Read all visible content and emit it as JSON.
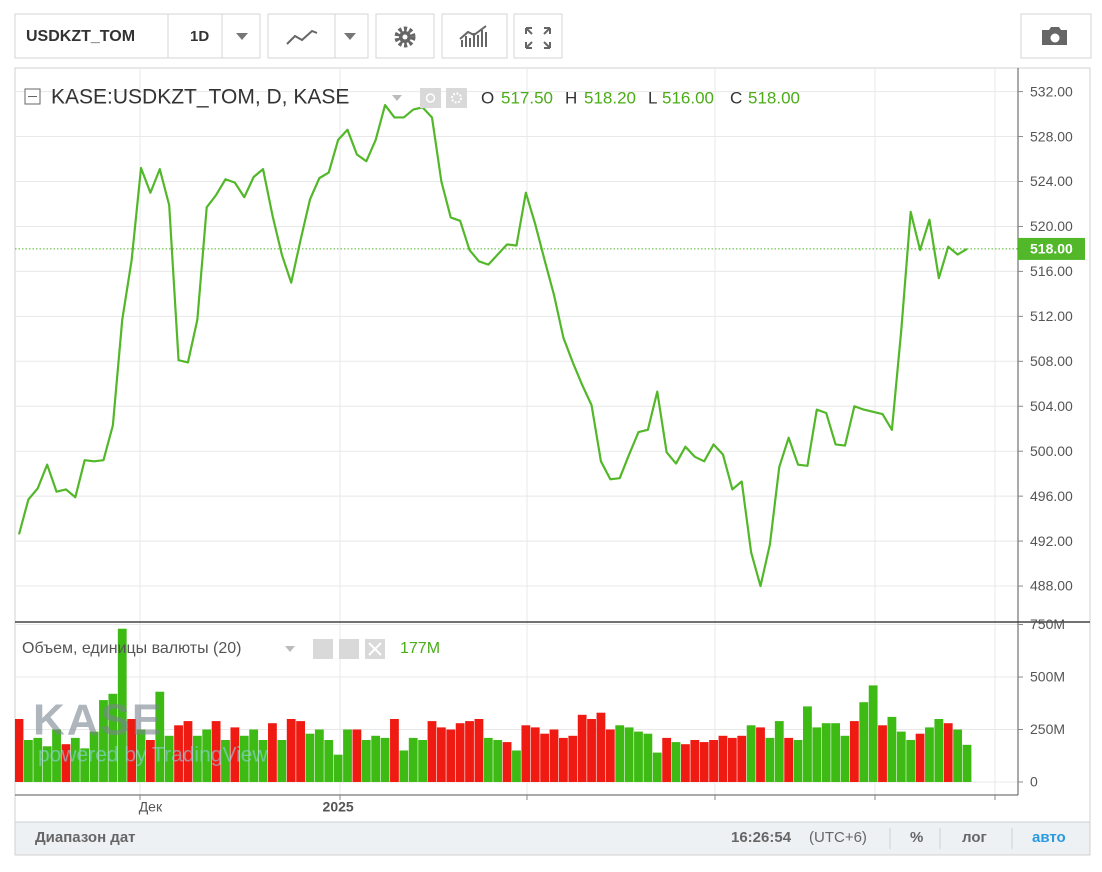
{
  "toolbar": {
    "symbol": "USDKZT_TOM",
    "interval": "1D"
  },
  "watermark": {
    "logo": "KASE",
    "powered": "powered by TradingView"
  },
  "footer": {
    "date_range": "Диапазон дат",
    "time": "16:26:54",
    "timezone": "(UTC+6)",
    "percent": "%",
    "log": "лог",
    "auto": "авто"
  },
  "chart_data": [
    {
      "type": "line",
      "title": "KASE:USDKZT_TOM, D, KASE",
      "ohlc": {
        "labels": [
          "O",
          "H",
          "L",
          "C"
        ],
        "values": [
          517.5,
          518.2,
          516,
          518
        ],
        "value_labels": [
          "517.50",
          "518.20",
          "516.00",
          "518.00"
        ]
      },
      "last_value": 518,
      "last_value_label": "518.00",
      "categories": [
        null,
        null,
        null,
        null,
        null,
        null,
        null,
        null,
        null,
        null,
        null,
        null,
        null,
        null,
        "Дек",
        null,
        null,
        null,
        null,
        null,
        null,
        null,
        null,
        null,
        null,
        null,
        null,
        null,
        null,
        null,
        null,
        null,
        null,
        null,
        "2025",
        null,
        null,
        null,
        null,
        null,
        null,
        null,
        null,
        null,
        null,
        null,
        null,
        null,
        null,
        null,
        null,
        null,
        null,
        null,
        null,
        null,
        null,
        null,
        null,
        null,
        null,
        null,
        null,
        null,
        null,
        null,
        null,
        null,
        null,
        null,
        null,
        null,
        null,
        null,
        null,
        null,
        null,
        null,
        null,
        null,
        null,
        null,
        null,
        null,
        null,
        null,
        null,
        null,
        null,
        null,
        null,
        null,
        null,
        null,
        null,
        null,
        null,
        null,
        null,
        null,
        null,
        null
      ],
      "series": [
        {
          "name": "USDKZT_TOM",
          "color": "#52b82a",
          "values": [
            492.6,
            495.7,
            496.7,
            498.8,
            496.4,
            496.6,
            495.9,
            499.2,
            499.1,
            499.2,
            502.3,
            511.7,
            517.0,
            525.2,
            523.0,
            525.1,
            521.9,
            508.1,
            507.9,
            511.7,
            521.7,
            522.8,
            524.2,
            523.9,
            522.6,
            524.4,
            525.1,
            521.0,
            517.5,
            515.0,
            518.8,
            522.4,
            524.3,
            524.8,
            527.7,
            528.6,
            526.4,
            525.8,
            527.7,
            530.8,
            529.7,
            529.7,
            530.4,
            530.6,
            529.7,
            524.0,
            520.8,
            520.5,
            517.9,
            516.9,
            516.6,
            517.5,
            518.4,
            518.3,
            523.0,
            520.2,
            517.0,
            513.9,
            510.1,
            507.9,
            505.9,
            504.1,
            499.1,
            497.5,
            497.6,
            499.7,
            501.7,
            501.9,
            505.3,
            499.9,
            498.9,
            500.4,
            499.5,
            499.1,
            500.6,
            499.7,
            496.6,
            497.3,
            491.0,
            488.0,
            491.7,
            498.6,
            501.2,
            498.8,
            498.7,
            503.7,
            503.4,
            500.6,
            500.5,
            504.0,
            503.7,
            503.5,
            503.3,
            501.9,
            510.8,
            521.3,
            517.9,
            520.6,
            515.4,
            518.2,
            517.5,
            518.0
          ]
        }
      ],
      "ylim": [
        484.8,
        534.1
      ],
      "yticks": [
        {
          "value": 488,
          "label": "488.00"
        },
        {
          "value": 492,
          "label": "492.00"
        },
        {
          "value": 496,
          "label": "496.00"
        },
        {
          "value": 500,
          "label": "500.00"
        },
        {
          "value": 504,
          "label": "504.00"
        },
        {
          "value": 508,
          "label": "508.00"
        },
        {
          "value": 512,
          "label": "512.00"
        },
        {
          "value": 516,
          "label": "516.00"
        },
        {
          "value": 520,
          "label": "520.00"
        },
        {
          "value": 524,
          "label": "524.00"
        },
        {
          "value": 528,
          "label": "528.00"
        },
        {
          "value": 532,
          "label": "532.00"
        }
      ],
      "grid": true
    },
    {
      "type": "bar",
      "title": "Объем, единицы валюты (20)",
      "last_value": 177,
      "last_value_label": "177M",
      "values": [
        300,
        200,
        210,
        170,
        250,
        180,
        210,
        160,
        240,
        390,
        420,
        730,
        300,
        250,
        200,
        430,
        220,
        270,
        290,
        220,
        250,
        290,
        200,
        260,
        220,
        250,
        200,
        280,
        200,
        300,
        290,
        230,
        250,
        200,
        130,
        250,
        250,
        200,
        220,
        210,
        300,
        150,
        210,
        200,
        290,
        260,
        250,
        280,
        290,
        300,
        210,
        200,
        190,
        150,
        270,
        260,
        230,
        250,
        210,
        220,
        320,
        300,
        330,
        250,
        270,
        260,
        240,
        230,
        140,
        210,
        190,
        180,
        200,
        190,
        200,
        220,
        210,
        220,
        270,
        260,
        210,
        290,
        210,
        200,
        360,
        260,
        280,
        280,
        220,
        290,
        380,
        460,
        270,
        310,
        240,
        200,
        230,
        260,
        300,
        280,
        250,
        177
      ],
      "colors": [
        "#ef1a12",
        "#3dba13",
        "#3dba13",
        "#3dba13",
        "#3dba13",
        "#ef1a12",
        "#3dba13",
        "#3dba13",
        "#3dba13",
        "#3dba13",
        "#3dba13",
        "#3dba13",
        "#ef1a12",
        "#3dba13",
        "#ef1a12",
        "#3dba13",
        "#3dba13",
        "#ef1a12",
        "#ef1a12",
        "#3dba13",
        "#3dba13",
        "#ef1a12",
        "#3dba13",
        "#ef1a12",
        "#3dba13",
        "#3dba13",
        "#3dba13",
        "#ef1a12",
        "#3dba13",
        "#ef1a12",
        "#ef1a12",
        "#3dba13",
        "#3dba13",
        "#3dba13",
        "#3dba13",
        "#3dba13",
        "#ef1a12",
        "#3dba13",
        "#3dba13",
        "#3dba13",
        "#ef1a12",
        "#3dba13",
        "#3dba13",
        "#3dba13",
        "#ef1a12",
        "#ef1a12",
        "#ef1a12",
        "#ef1a12",
        "#ef1a12",
        "#ef1a12",
        "#3dba13",
        "#3dba13",
        "#ef1a12",
        "#3dba13",
        "#ef1a12",
        "#ef1a12",
        "#ef1a12",
        "#ef1a12",
        "#ef1a12",
        "#ef1a12",
        "#ef1a12",
        "#ef1a12",
        "#ef1a12",
        "#ef1a12",
        "#3dba13",
        "#3dba13",
        "#3dba13",
        "#3dba13",
        "#3dba13",
        "#ef1a12",
        "#3dba13",
        "#ef1a12",
        "#ef1a12",
        "#ef1a12",
        "#ef1a12",
        "#ef1a12",
        "#ef1a12",
        "#ef1a12",
        "#3dba13",
        "#ef1a12",
        "#3dba13",
        "#3dba13",
        "#ef1a12",
        "#3dba13",
        "#3dba13",
        "#3dba13",
        "#3dba13",
        "#3dba13",
        "#3dba13",
        "#ef1a12",
        "#3dba13",
        "#3dba13",
        "#ef1a12",
        "#3dba13",
        "#3dba13",
        "#3dba13",
        "#ef1a12",
        "#3dba13",
        "#3dba13",
        "#ef1a12",
        "#3dba13",
        "#3dba13"
      ],
      "ylim": [
        -62,
        762
      ],
      "yticks": [
        0,
        {
          "value": 250,
          "label": "250M"
        },
        {
          "value": 500,
          "label": "500M"
        },
        {
          "value": 750,
          "label": "750M"
        }
      ],
      "grid": true
    }
  ]
}
